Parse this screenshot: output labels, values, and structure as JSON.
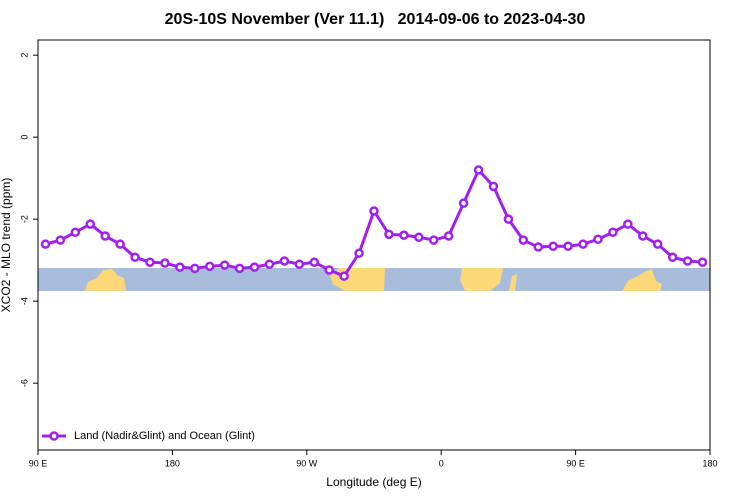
{
  "chart_data": {
    "type": "line",
    "title": "20S-10S November (Ver 11.1)   2014-09-06 to 2023-04-30",
    "x_label": "Longitude (deg E)",
    "y_label": "XCO2 - MLO trend (ppm)",
    "xlim": [
      90,
      540
    ],
    "ylim": [
      -7.63,
      2.37
    ],
    "xticks": [
      {
        "value": 90,
        "label": "90 E"
      },
      180,
      {
        "value": 270,
        "label": "90 W"
      },
      {
        "value": 360,
        "label": "0"
      },
      {
        "value": 450,
        "label": "90 E"
      },
      {
        "value": 540,
        "label": "180"
      }
    ],
    "yticks": [
      -6,
      -4,
      -2,
      0,
      2
    ],
    "legend": "bottom-left",
    "x": [
      95,
      105,
      115,
      125,
      135,
      145,
      155,
      165,
      175,
      185,
      195,
      205,
      215,
      225,
      235,
      245,
      255,
      265,
      275,
      285,
      295,
      305,
      315,
      325,
      335,
      345,
      355,
      365,
      375,
      385,
      395,
      405,
      415,
      425,
      435,
      445,
      455,
      465,
      475,
      485,
      495,
      505,
      515,
      525,
      535
    ],
    "series": [
      {
        "name": "Land (Nadir&Glint) and Ocean (Glint)",
        "color": "#a020f0",
        "values": [
          -2.61,
          -2.51,
          -2.32,
          -2.12,
          -2.41,
          -2.61,
          -2.93,
          -3.05,
          -3.07,
          -3.17,
          -3.2,
          -3.15,
          -3.12,
          -3.2,
          -3.17,
          -3.1,
          -3.02,
          -3.1,
          -3.05,
          -3.24,
          -3.39,
          -2.83,
          -1.8,
          -2.37,
          -2.39,
          -2.44,
          -2.51,
          -2.41,
          -1.61,
          -0.8,
          -1.2,
          -2.0,
          -2.51,
          -2.68,
          -2.66,
          -2.66,
          -2.61,
          -2.49,
          -2.32,
          -2.12,
          -2.41,
          -2.61,
          -2.93,
          -3.02,
          -3.05
        ]
      }
    ]
  }
}
